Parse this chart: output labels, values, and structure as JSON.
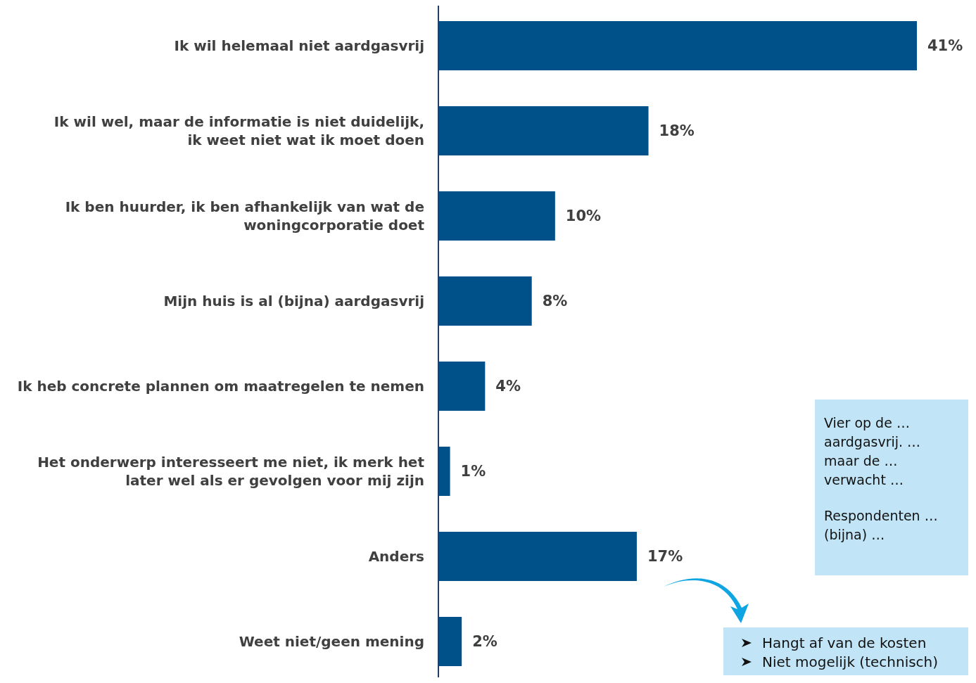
{
  "chart_data": {
    "type": "bar",
    "orientation": "horizontal",
    "categories": [
      "Ik wil helemaal niet aardgasvrij",
      "Ik wil wel, maar de informatie is niet duidelijk, ik weet niet wat ik moet doen",
      "Ik ben huurder, ik ben afhankelijk van wat de woningcorporatie doet",
      "Mijn huis is al (bijna) aardgasvrij",
      "Ik heb concrete plannen om maatregelen te nemen",
      "Het onderwerp interesseert me niet, ik merk het later wel als er gevolgen voor mij zijn",
      "Anders",
      "Weet niet/geen mening"
    ],
    "values": [
      41,
      18,
      10,
      8,
      4,
      1,
      17,
      2
    ],
    "value_labels": [
      "41%",
      "18%",
      "10%",
      "8%",
      "4%",
      "1%",
      "17%",
      "2%"
    ],
    "color": "#00518a",
    "annotations": [
      "Vier op de … aardgasvrij. … maar de … verwacht …",
      "Respondenten … (bijna) …",
      "Hangt af van de kosten",
      "Niet mogelijk (technisch)"
    ]
  }
}
